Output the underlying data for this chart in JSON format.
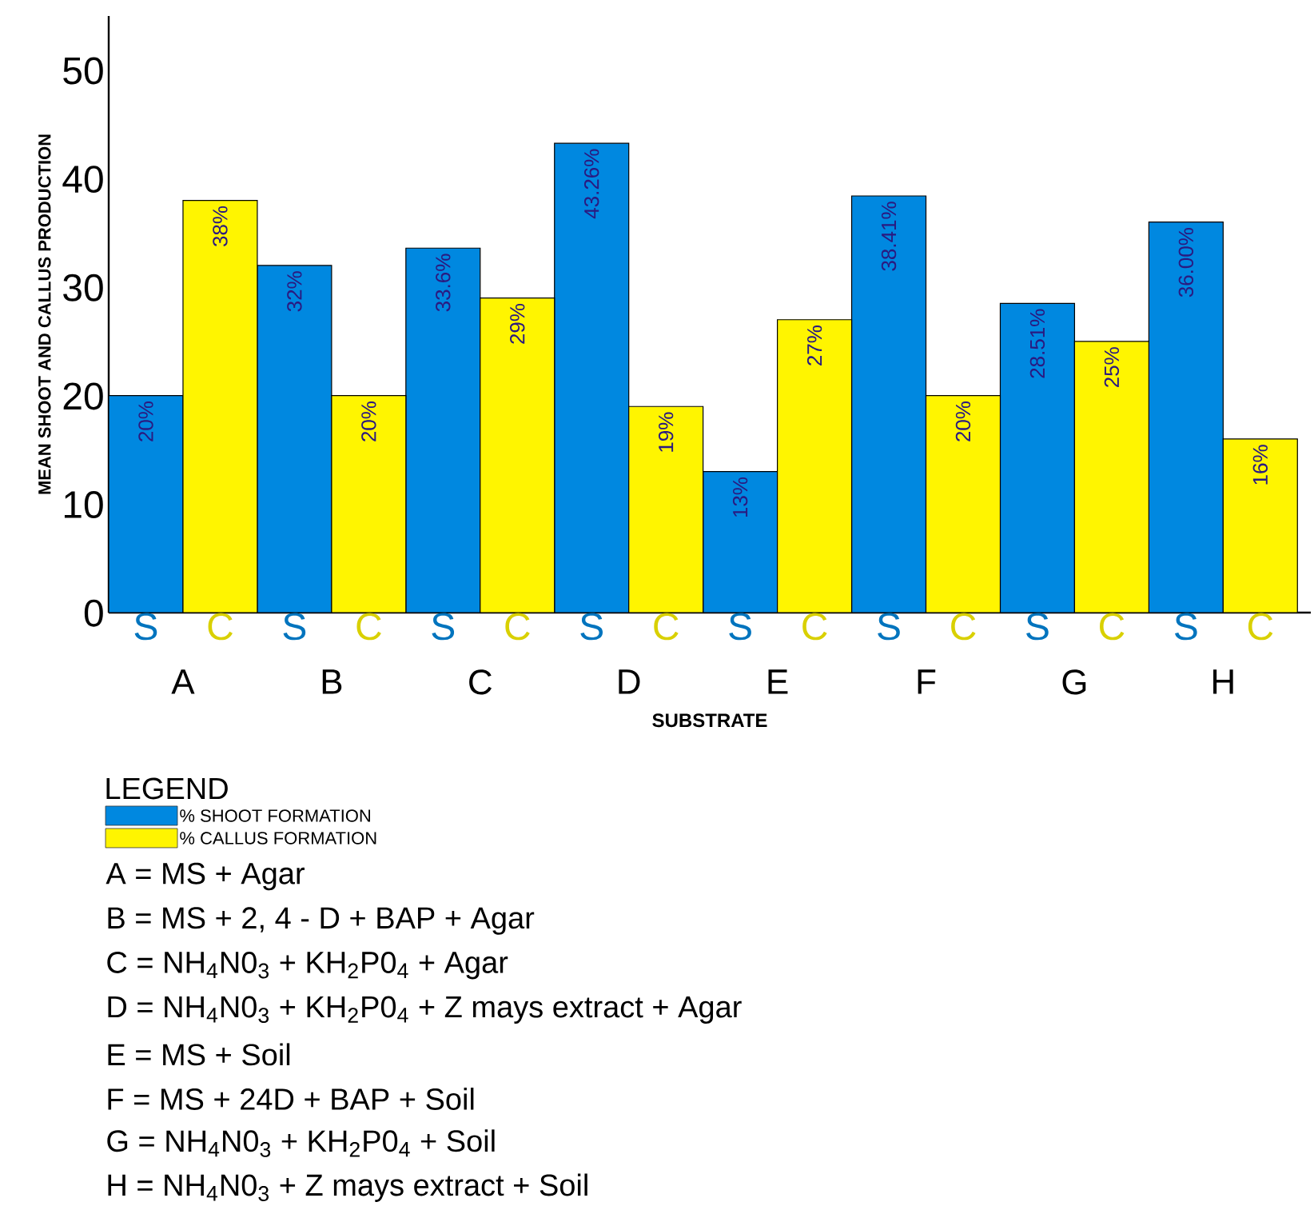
{
  "chart_data": {
    "type": "bar",
    "xlabel": "SUBSTRATE",
    "ylabel": "MEAN SHOOT AND CALLUS PRODUCTION",
    "legend_title": "LEGEND",
    "legend": "bottom left",
    "grid": false,
    "categories": [
      "A",
      "B",
      "C",
      "D",
      "E",
      "F",
      "G",
      "H"
    ],
    "ylim": [
      0,
      55
    ],
    "yticks": [
      0,
      10,
      20,
      30,
      40,
      50
    ],
    "series": [
      {
        "name": "% SHOOT FORMATION",
        "color": "#0088e0",
        "values": [
          20,
          32,
          33.6,
          43.26,
          13,
          38.41,
          28.51,
          36.0
        ],
        "value_labels": [
          "20%",
          "32%",
          "33.6%",
          "43.26%",
          "13%",
          "38.41%",
          "28.51%",
          "36.00%"
        ]
      },
      {
        "name": "% CALLUS FORMATION",
        "color": "#fff500",
        "values": [
          38,
          20,
          29,
          19,
          27,
          20,
          25,
          16
        ],
        "value_labels": [
          "38%",
          "20%",
          "29%",
          "19%",
          "27%",
          "20%",
          "25%",
          "16%"
        ]
      }
    ],
    "annotations": [
      "S",
      "C",
      "S",
      "C",
      "S",
      "C",
      "S",
      "C",
      "S",
      "C",
      "S",
      "C",
      "S",
      "C",
      "S",
      "C",
      "A = MS + Agar",
      "B = MS + 2, 4 - D + BAP + Agar",
      "C = NH$_{4}$N0$_{3}$ + KH$_{2}$P0$_{4}$ + Agar",
      "D = NH$_{4}$N0$_{3}$ + KH$_{2}$P0$_{4}$ + Z mays extract + Agar",
      "E = MS + Soil",
      "F = MS + 24D + BAP + Soil",
      "G = NH$_{4}$N0$_{3}$ + KH$_{2}$P0$_{4}$ + Soil",
      "H = NH$_{4}$N0$_{3}$ + Z mays extract + Soil"
    ]
  }
}
